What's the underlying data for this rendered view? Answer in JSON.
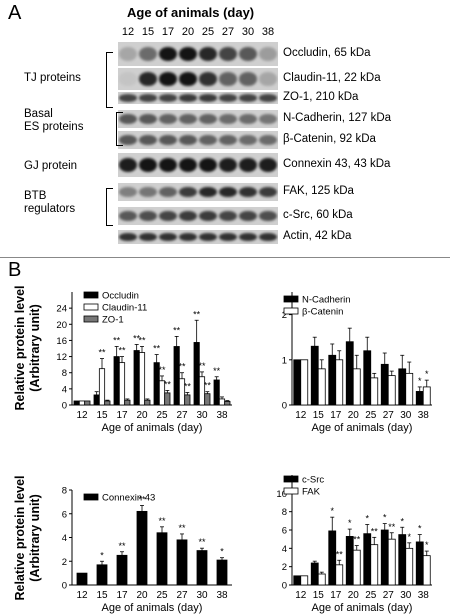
{
  "panel_a": {
    "letter": "A",
    "age_title": "Age of animals (day)",
    "days": [
      "12",
      "15",
      "17",
      "20",
      "25",
      "27",
      "30",
      "38"
    ],
    "groups": [
      {
        "name": "TJ proteins",
        "bands": [
          "Occludin, 65 kDa",
          "Claudin-11, 22 kDa",
          "ZO-1, 210 kDa"
        ]
      },
      {
        "name": "Basal ES proteins",
        "bands": [
          "N-Cadherin, 127 kDa",
          "β-Catenin, 92 kDa"
        ]
      },
      {
        "name": "GJ protein",
        "bands": [
          "Connexin 43, 43 kDa"
        ]
      },
      {
        "name": "BTB regulators",
        "bands": [
          "FAK, 125 kDa",
          "c-Src, 60 kDa"
        ]
      },
      {
        "name": "",
        "bands": [
          "Actin, 42 kDa"
        ]
      }
    ],
    "group_labels": {
      "tj": "TJ proteins",
      "basal_line1": "Basal",
      "basal_line2": "ES proteins",
      "gj": "GJ protein",
      "btb_line1": "BTB",
      "btb_line2": "regulators"
    }
  },
  "panel_b": {
    "letter": "B",
    "ylabel_line1": "Relative protein level",
    "ylabel_line2": "(Arbitrary unit)",
    "xlabel": "Age of animals (day)"
  },
  "chart_data": [
    {
      "type": "bar",
      "categories": [
        "12",
        "15",
        "17",
        "20",
        "25",
        "27",
        "30",
        "38"
      ],
      "xlabel": "Age of animals (day)",
      "ylabel": "Relative protein level (Arbitrary unit)",
      "ylim": [
        0,
        28
      ],
      "yticks": [
        0,
        4,
        8,
        12,
        16,
        20,
        24
      ],
      "legend": "top-left",
      "series": [
        {
          "name": "Occludin",
          "color": "#000000",
          "values": [
            1,
            2.5,
            12,
            13.5,
            10.5,
            14.5,
            15.5,
            6.2
          ],
          "errors": [
            0,
            0.8,
            2.5,
            1.5,
            2,
            2.5,
            5.5,
            0.8
          ]
        },
        {
          "name": "Claudin-11",
          "color": "#ffffff",
          "values": [
            1,
            9,
            10.5,
            13,
            6,
            6.5,
            7,
            1.5
          ],
          "errors": [
            0,
            2.5,
            1.5,
            1.5,
            1.2,
            1.5,
            1.2,
            0.5
          ]
        },
        {
          "name": "ZO-1",
          "color": "#777777",
          "values": [
            1,
            1,
            1.2,
            1.2,
            3,
            2.5,
            2.8,
            0.9
          ],
          "errors": [
            0,
            0.2,
            0.3,
            0.3,
            0.6,
            0.6,
            0.5,
            0.2
          ]
        }
      ],
      "annotations": [
        {
          "category": "15",
          "series": "Claudin-11",
          "text": "**"
        },
        {
          "category": "17",
          "series": "Occludin",
          "text": "**"
        },
        {
          "category": "17",
          "series": "Claudin-11",
          "text": "**"
        },
        {
          "category": "20",
          "series": "Occludin",
          "text": "**"
        },
        {
          "category": "20",
          "series": "Claudin-11",
          "text": "**"
        },
        {
          "category": "25",
          "series": "Occludin",
          "text": "**"
        },
        {
          "category": "25",
          "series": "Claudin-11",
          "text": "**"
        },
        {
          "category": "25",
          "series": "ZO-1",
          "text": "**"
        },
        {
          "category": "27",
          "series": "Occludin",
          "text": "**"
        },
        {
          "category": "27",
          "series": "Claudin-11",
          "text": "**"
        },
        {
          "category": "27",
          "series": "ZO-1",
          "text": "**"
        },
        {
          "category": "30",
          "series": "Occludin",
          "text": "**"
        },
        {
          "category": "30",
          "series": "Claudin-11",
          "text": "**"
        },
        {
          "category": "30",
          "series": "ZO-1",
          "text": "**"
        },
        {
          "category": "38",
          "series": "Occludin",
          "text": "**"
        }
      ]
    },
    {
      "type": "bar",
      "categories": [
        "12",
        "15",
        "17",
        "20",
        "25",
        "27",
        "30",
        "38"
      ],
      "xlabel": "Age of animals (day)",
      "ylim": [
        0,
        2.5
      ],
      "yticks": [
        0,
        1,
        2
      ],
      "legend": "top-left",
      "series": [
        {
          "name": "N-Cadherin",
          "color": "#000000",
          "values": [
            1,
            1.3,
            1.1,
            1.4,
            1.2,
            0.9,
            0.8,
            0.3
          ],
          "errors": [
            0,
            0.2,
            0.25,
            0.3,
            0.3,
            0.25,
            0.3,
            0.1
          ]
        },
        {
          "name": "β-Catenin",
          "color": "#ffffff",
          "values": [
            1,
            0.8,
            1,
            0.8,
            0.6,
            0.65,
            0.7,
            0.4
          ],
          "errors": [
            0,
            0.2,
            0.2,
            0.3,
            0.1,
            0.1,
            0.25,
            0.15
          ]
        }
      ],
      "annotations": [
        {
          "category": "38",
          "series": "N-Cadherin",
          "text": "*"
        },
        {
          "category": "38",
          "series": "β-Catenin",
          "text": "*"
        }
      ]
    },
    {
      "type": "bar",
      "categories": [
        "12",
        "15",
        "17",
        "20",
        "25",
        "27",
        "30",
        "38"
      ],
      "xlabel": "Age of animals (day)",
      "ylabel": "Relative protein level (Arbitrary unit)",
      "ylim": [
        0,
        8
      ],
      "yticks": [
        0,
        2,
        4,
        6,
        8
      ],
      "legend": "top-left",
      "series": [
        {
          "name": "Connexin 43",
          "color": "#000000",
          "values": [
            1,
            1.7,
            2.5,
            6.2,
            4.4,
            3.8,
            2.9,
            2.1
          ],
          "errors": [
            0,
            0.3,
            0.3,
            0.5,
            0.5,
            0.5,
            0.2,
            0.2
          ]
        }
      ],
      "annotations": [
        {
          "category": "15",
          "series": "Connexin 43",
          "text": "*"
        },
        {
          "category": "17",
          "series": "Connexin 43",
          "text": "**"
        },
        {
          "category": "20",
          "series": "Connexin 43",
          "text": "**"
        },
        {
          "category": "25",
          "series": "Connexin 43",
          "text": "**"
        },
        {
          "category": "27",
          "series": "Connexin 43",
          "text": "**"
        },
        {
          "category": "30",
          "series": "Connexin 43",
          "text": "**"
        },
        {
          "category": "38",
          "series": "Connexin 43",
          "text": "*"
        }
      ]
    },
    {
      "type": "bar",
      "categories": [
        "12",
        "15",
        "17",
        "20",
        "25",
        "27",
        "30",
        "38"
      ],
      "xlabel": "Age of animals (day)",
      "ylim": [
        0,
        12
      ],
      "yticks": [
        0,
        2,
        4,
        6,
        8,
        10
      ],
      "legend": "top-left",
      "series": [
        {
          "name": "c-Src",
          "color": "#000000",
          "values": [
            1,
            2.4,
            5.9,
            5.3,
            5.6,
            6,
            5.5,
            4.7
          ],
          "errors": [
            0,
            0.2,
            1.5,
            0.8,
            1,
            0.7,
            0.8,
            0.8
          ]
        },
        {
          "name": "FAK",
          "color": "#ffffff",
          "values": [
            1,
            1.2,
            2.2,
            3.8,
            4.4,
            5,
            4,
            3.2
          ],
          "errors": [
            0,
            0.2,
            0.5,
            0.5,
            0.8,
            0.7,
            0.6,
            0.5
          ]
        }
      ],
      "annotations": [
        {
          "category": "17",
          "series": "c-Src",
          "text": "*"
        },
        {
          "category": "17",
          "series": "FAK",
          "text": "**"
        },
        {
          "category": "20",
          "series": "c-Src",
          "text": "*"
        },
        {
          "category": "20",
          "series": "FAK",
          "text": "**"
        },
        {
          "category": "25",
          "series": "c-Src",
          "text": "*"
        },
        {
          "category": "25",
          "series": "FAK",
          "text": "**"
        },
        {
          "category": "27",
          "series": "c-Src",
          "text": "*"
        },
        {
          "category": "27",
          "series": "FAK",
          "text": "**"
        },
        {
          "category": "30",
          "series": "c-Src",
          "text": "*"
        },
        {
          "category": "30",
          "series": "FAK",
          "text": "*"
        },
        {
          "category": "38",
          "series": "c-Src",
          "text": "*"
        },
        {
          "category": "38",
          "series": "FAK",
          "text": "*"
        }
      ]
    }
  ]
}
